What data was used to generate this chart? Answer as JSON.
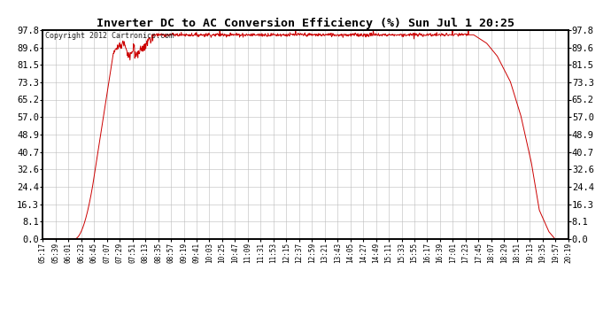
{
  "title": "Inverter DC to AC Conversion Efficiency (%) Sun Jul 1 20:25",
  "copyright": "Copyright 2012 Cartronics.com",
  "line_color": "#cc0000",
  "background_color": "#ffffff",
  "plot_background": "#ffffff",
  "grid_color": "#bbbbbb",
  "yticks": [
    0.0,
    8.1,
    16.3,
    24.4,
    32.6,
    40.7,
    48.9,
    57.0,
    65.2,
    73.3,
    81.5,
    89.6,
    97.8
  ],
  "ylim": [
    0.0,
    97.8
  ],
  "xtick_labels": [
    "05:17",
    "05:39",
    "06:01",
    "06:23",
    "06:45",
    "07:07",
    "07:29",
    "07:51",
    "08:13",
    "08:35",
    "08:57",
    "09:19",
    "09:41",
    "10:03",
    "10:25",
    "10:47",
    "11:09",
    "11:31",
    "11:53",
    "12:15",
    "12:37",
    "12:59",
    "13:21",
    "13:43",
    "14:05",
    "14:27",
    "14:49",
    "15:11",
    "15:33",
    "15:55",
    "16:17",
    "16:39",
    "17:01",
    "17:23",
    "17:45",
    "18:07",
    "18:29",
    "18:51",
    "19:13",
    "19:35",
    "19:57",
    "20:19"
  ],
  "n_points": 1200
}
